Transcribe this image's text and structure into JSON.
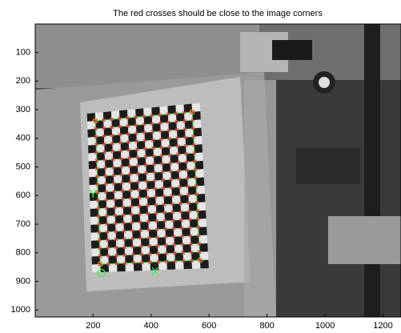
{
  "chart_data": {
    "type": "image",
    "title": "The red crosses should be close to the image corners",
    "xlim": [
      0.5,
      1262
    ],
    "ylim": [
      0.5,
      1024.5
    ],
    "xticks": [
      200,
      400,
      600,
      800,
      1000,
      1200
    ],
    "yticks": [
      100,
      200,
      300,
      400,
      500,
      600,
      700,
      800,
      900,
      1000
    ],
    "corners": {
      "x": [
        208,
        542,
        569,
        225
      ],
      "y": [
        339,
        308,
        826,
        840
      ]
    },
    "annotations": [
      {
        "text": "O",
        "x": 228,
        "y": 874
      },
      {
        "text": "X",
        "x": 414,
        "y": 868
      },
      {
        "text": "Y",
        "x": 200,
        "y": 597
      }
    ]
  }
}
